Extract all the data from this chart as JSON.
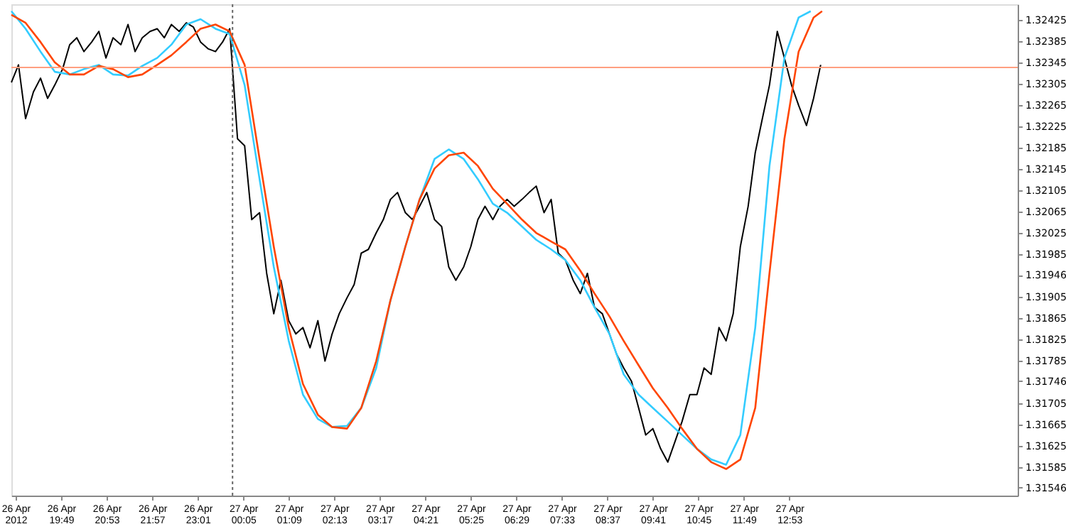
{
  "chart_data": {
    "type": "line",
    "xlim": [
      "2012-04-26T18:39",
      "2012-04-27T18:14"
    ],
    "ylim": [
      1.31531,
      1.32455
    ],
    "xticks": [
      {
        "value": "2012-04-26T18:45",
        "label": "26 Apr 2012"
      },
      {
        "value": "2012-04-26T19:49",
        "label": "26 Apr 19:49"
      },
      {
        "value": "2012-04-26T20:53",
        "label": "26 Apr 20:53"
      },
      {
        "value": "2012-04-26T21:57",
        "label": "26 Apr 21:57"
      },
      {
        "value": "2012-04-26T23:01",
        "label": "26 Apr 23:01"
      },
      {
        "value": "2012-04-27T00:05",
        "label": "27 Apr 00:05"
      },
      {
        "value": "2012-04-27T01:09",
        "label": "27 Apr 01:09"
      },
      {
        "value": "2012-04-27T02:13",
        "label": "27 Apr 02:13"
      },
      {
        "value": "2012-04-27T03:17",
        "label": "27 Apr 03:17"
      },
      {
        "value": "2012-04-27T04:21",
        "label": "27 Apr 04:21"
      },
      {
        "value": "2012-04-27T05:25",
        "label": "27 Apr 05:25"
      },
      {
        "value": "2012-04-27T06:29",
        "label": "27 Apr 06:29"
      },
      {
        "value": "2012-04-27T07:33",
        "label": "27 Apr 07:33"
      },
      {
        "value": "2012-04-27T08:37",
        "label": "27 Apr 08:37"
      },
      {
        "value": "2012-04-27T09:41",
        "label": "27 Apr 09:41"
      },
      {
        "value": "2012-04-27T10:45",
        "label": "27 Apr 10:45"
      },
      {
        "value": "2012-04-27T11:49",
        "label": "27 Apr 11:49"
      },
      {
        "value": "2012-04-27T12:53",
        "label": "27 Apr 12:53"
      }
    ],
    "yticks": [
      1.32425,
      1.32385,
      1.32345,
      1.32305,
      1.32265,
      1.32225,
      1.32185,
      1.32145,
      1.32105,
      1.32065,
      1.32025,
      1.31985,
      1.31946,
      1.31905,
      1.31865,
      1.31825,
      1.31785,
      1.31746,
      1.31705,
      1.31665,
      1.31625,
      1.31585,
      1.31546
    ],
    "grid": false,
    "line_style": "solid",
    "ref_lines": [
      {
        "axis": "y",
        "value": 1.32336,
        "color": "#ff9f80",
        "line_style": "solid"
      },
      {
        "axis": "x",
        "value": "2012-04-26T23:50",
        "color": "#666666",
        "line_style": "dotted"
      }
    ],
    "series": [
      {
        "color": "#000000",
        "x": [
          "2012-04-26T18:39",
          "2012-04-26T18:49",
          "2012-04-26T18:59",
          "2012-04-26T19:10",
          "2012-04-26T19:20",
          "2012-04-26T19:30",
          "2012-04-26T19:40",
          "2012-04-26T19:51",
          "2012-04-26T20:01",
          "2012-04-26T20:11",
          "2012-04-26T20:21",
          "2012-04-26T20:32",
          "2012-04-26T20:42",
          "2012-04-26T20:52",
          "2012-04-26T21:02",
          "2012-04-26T21:13",
          "2012-04-26T21:23",
          "2012-04-26T21:33",
          "2012-04-26T21:43",
          "2012-04-26T21:54",
          "2012-04-26T22:04",
          "2012-04-26T22:14",
          "2012-04-26T22:24",
          "2012-04-26T22:35",
          "2012-04-26T22:45",
          "2012-04-26T22:55",
          "2012-04-26T23:05",
          "2012-04-26T23:16",
          "2012-04-26T23:26",
          "2012-04-26T23:36",
          "2012-04-26T23:46",
          "2012-04-26T23:57",
          "2012-04-27T00:07",
          "2012-04-27T00:17",
          "2012-04-27T00:28",
          "2012-04-27T00:38",
          "2012-04-27T00:48",
          "2012-04-27T00:58",
          "2012-04-27T01:09",
          "2012-04-27T01:19",
          "2012-04-27T01:29",
          "2012-04-27T01:39",
          "2012-04-27T01:50",
          "2012-04-27T02:00",
          "2012-04-27T02:10",
          "2012-04-27T02:20",
          "2012-04-27T02:31",
          "2012-04-27T02:41",
          "2012-04-27T02:51",
          "2012-04-27T03:01",
          "2012-04-27T03:12",
          "2012-04-27T03:22",
          "2012-04-27T03:32",
          "2012-04-27T03:42",
          "2012-04-27T03:53",
          "2012-04-27T04:03",
          "2012-04-27T04:13",
          "2012-04-27T04:23",
          "2012-04-27T04:34",
          "2012-04-27T04:44",
          "2012-04-27T04:54",
          "2012-04-27T05:04",
          "2012-04-27T05:15",
          "2012-04-27T05:25",
          "2012-04-27T05:35",
          "2012-04-27T05:45",
          "2012-04-27T05:56",
          "2012-04-27T06:06",
          "2012-04-27T06:16",
          "2012-04-27T06:26",
          "2012-04-27T06:37",
          "2012-04-27T06:47",
          "2012-04-27T06:57",
          "2012-04-27T07:08",
          "2012-04-27T07:18",
          "2012-04-27T07:28",
          "2012-04-27T07:38",
          "2012-04-27T07:49",
          "2012-04-27T07:59",
          "2012-04-27T08:09",
          "2012-04-27T08:19",
          "2012-04-27T08:30",
          "2012-04-27T08:40",
          "2012-04-27T08:50",
          "2012-04-27T09:00",
          "2012-04-27T09:11",
          "2012-04-27T09:21",
          "2012-04-27T09:31",
          "2012-04-27T09:41",
          "2012-04-27T09:52",
          "2012-04-27T10:02",
          "2012-04-27T10:12",
          "2012-04-27T10:22",
          "2012-04-27T10:33",
          "2012-04-27T10:43",
          "2012-04-27T10:53",
          "2012-04-27T11:03",
          "2012-04-27T11:14",
          "2012-04-27T11:24",
          "2012-04-27T11:34",
          "2012-04-27T11:44",
          "2012-04-27T11:55",
          "2012-04-27T12:05",
          "2012-04-27T12:15",
          "2012-04-27T12:25",
          "2012-04-27T12:36",
          "2012-04-27T12:46",
          "2012-04-27T12:56",
          "2012-04-27T13:06",
          "2012-04-27T13:17",
          "2012-04-27T13:27",
          "2012-04-27T13:37"
        ],
        "values": [
          1.32308,
          1.32341,
          1.3224,
          1.3229,
          1.32316,
          1.32278,
          1.32303,
          1.32333,
          1.32379,
          1.32392,
          1.32366,
          1.32384,
          1.32404,
          1.32354,
          1.32392,
          1.32379,
          1.32417,
          1.32366,
          1.32392,
          1.32404,
          1.32409,
          1.32392,
          1.32417,
          1.32404,
          1.3242,
          1.32412,
          1.32384,
          1.32371,
          1.32366,
          1.32384,
          1.32409,
          1.32202,
          1.32189,
          1.3205,
          1.32063,
          1.31949,
          1.31873,
          1.31936,
          1.3186,
          1.31835,
          1.31847,
          1.31809,
          1.3186,
          1.31784,
          1.31835,
          1.31873,
          1.31903,
          1.31928,
          1.31987,
          1.31994,
          1.32025,
          1.3205,
          1.32088,
          1.32101,
          1.32063,
          1.3205,
          1.32075,
          1.32101,
          1.3205,
          1.32037,
          1.31961,
          1.31936,
          1.31961,
          1.31999,
          1.3205,
          1.32075,
          1.3205,
          1.32075,
          1.32088,
          1.32075,
          1.32088,
          1.32101,
          1.32113,
          1.32063,
          1.32088,
          1.31987,
          1.31974,
          1.31936,
          1.31911,
          1.31949,
          1.31885,
          1.31873,
          1.31835,
          1.31797,
          1.31771,
          1.31746,
          1.31696,
          1.31645,
          1.31657,
          1.31619,
          1.31594,
          1.31632,
          1.3167,
          1.31721,
          1.31721,
          1.31771,
          1.31759,
          1.31847,
          1.31822,
          1.31873,
          1.31999,
          1.32075,
          1.32176,
          1.3224,
          1.32303,
          1.32404,
          1.32354,
          1.32303,
          1.32265,
          1.32227,
          1.32278,
          1.32341
        ]
      },
      {
        "color": "#33ccff",
        "x": [
          "2012-04-26T18:39",
          "2012-04-26T18:59",
          "2012-04-26T19:20",
          "2012-04-26T19:40",
          "2012-04-26T20:01",
          "2012-04-26T20:21",
          "2012-04-26T20:42",
          "2012-04-26T21:02",
          "2012-04-26T21:23",
          "2012-04-26T21:43",
          "2012-04-26T22:04",
          "2012-04-26T22:24",
          "2012-04-26T22:45",
          "2012-04-26T23:05",
          "2012-04-26T23:26",
          "2012-04-26T23:46",
          "2012-04-27T00:07",
          "2012-04-27T00:28",
          "2012-04-27T00:48",
          "2012-04-27T01:09",
          "2012-04-27T01:29",
          "2012-04-27T01:50",
          "2012-04-27T02:10",
          "2012-04-27T02:31",
          "2012-04-27T02:51",
          "2012-04-27T03:12",
          "2012-04-27T03:32",
          "2012-04-27T03:53",
          "2012-04-27T04:13",
          "2012-04-27T04:34",
          "2012-04-27T04:54",
          "2012-04-27T05:15",
          "2012-04-27T05:35",
          "2012-04-27T05:56",
          "2012-04-27T06:16",
          "2012-04-27T06:37",
          "2012-04-27T06:57",
          "2012-04-27T07:18",
          "2012-04-27T07:38",
          "2012-04-27T07:59",
          "2012-04-27T08:19",
          "2012-04-27T08:40",
          "2012-04-27T09:00",
          "2012-04-27T09:21",
          "2012-04-27T09:41",
          "2012-04-27T10:02",
          "2012-04-27T10:22",
          "2012-04-27T10:43",
          "2012-04-27T11:03",
          "2012-04-27T11:24",
          "2012-04-27T11:44",
          "2012-04-27T12:05",
          "2012-04-27T12:25",
          "2012-04-27T12:46",
          "2012-04-27T13:06",
          "2012-04-27T13:23"
        ],
        "values": [
          1.32442,
          1.32409,
          1.32366,
          1.32328,
          1.32323,
          1.32333,
          1.32341,
          1.32323,
          1.32321,
          1.32339,
          1.32354,
          1.32379,
          1.32417,
          1.32427,
          1.32409,
          1.32399,
          1.32303,
          1.32126,
          1.31961,
          1.31822,
          1.31721,
          1.31675,
          1.3166,
          1.31662,
          1.31696,
          1.31771,
          1.31898,
          1.31999,
          1.32088,
          1.32164,
          1.32182,
          1.32164,
          1.32126,
          1.3208,
          1.32063,
          1.32037,
          1.32012,
          1.31994,
          1.31974,
          1.31936,
          1.31885,
          1.31835,
          1.31759,
          1.31721,
          1.31696,
          1.3167,
          1.31645,
          1.31619,
          1.31599,
          1.31589,
          1.31645,
          1.31847,
          1.32151,
          1.32354,
          1.3243,
          1.32442
        ]
      },
      {
        "color": "#ff4500",
        "x": [
          "2012-04-26T18:39",
          "2012-04-26T18:59",
          "2012-04-26T19:20",
          "2012-04-26T19:40",
          "2012-04-26T20:01",
          "2012-04-26T20:21",
          "2012-04-26T20:42",
          "2012-04-26T21:02",
          "2012-04-26T21:23",
          "2012-04-26T21:43",
          "2012-04-26T22:04",
          "2012-04-26T22:24",
          "2012-04-26T22:45",
          "2012-04-26T23:05",
          "2012-04-26T23:26",
          "2012-04-26T23:46",
          "2012-04-27T00:07",
          "2012-04-27T00:28",
          "2012-04-27T00:48",
          "2012-04-27T01:09",
          "2012-04-27T01:29",
          "2012-04-27T01:50",
          "2012-04-27T02:10",
          "2012-04-27T02:31",
          "2012-04-27T02:51",
          "2012-04-27T03:12",
          "2012-04-27T03:32",
          "2012-04-27T03:53",
          "2012-04-27T04:13",
          "2012-04-27T04:34",
          "2012-04-27T04:54",
          "2012-04-27T05:15",
          "2012-04-27T05:35",
          "2012-04-27T05:56",
          "2012-04-27T06:16",
          "2012-04-27T06:37",
          "2012-04-27T06:57",
          "2012-04-27T07:18",
          "2012-04-27T07:38",
          "2012-04-27T07:59",
          "2012-04-27T08:19",
          "2012-04-27T08:40",
          "2012-04-27T09:00",
          "2012-04-27T09:21",
          "2012-04-27T09:41",
          "2012-04-27T10:02",
          "2012-04-27T10:22",
          "2012-04-27T10:43",
          "2012-04-27T11:03",
          "2012-04-27T11:24",
          "2012-04-27T11:44",
          "2012-04-27T12:05",
          "2012-04-27T12:25",
          "2012-04-27T12:46",
          "2012-04-27T13:06",
          "2012-04-27T13:27",
          "2012-04-27T13:39"
        ],
        "values": [
          1.32435,
          1.3242,
          1.32384,
          1.32346,
          1.32323,
          1.32323,
          1.32339,
          1.32333,
          1.32318,
          1.32323,
          1.32341,
          1.32359,
          1.32384,
          1.32409,
          1.32417,
          1.32404,
          1.32341,
          1.32164,
          1.31999,
          1.31847,
          1.31741,
          1.31683,
          1.3166,
          1.31657,
          1.31696,
          1.31784,
          1.31898,
          1.31999,
          1.32088,
          1.32146,
          1.32171,
          1.32176,
          1.32151,
          1.32108,
          1.3208,
          1.3205,
          1.32025,
          1.32009,
          1.31994,
          1.31954,
          1.31911,
          1.31868,
          1.31822,
          1.31776,
          1.31733,
          1.31696,
          1.31657,
          1.31619,
          1.31594,
          1.31581,
          1.31599,
          1.31696,
          1.31949,
          1.32202,
          1.32366,
          1.3243,
          1.32442
        ]
      }
    ]
  }
}
